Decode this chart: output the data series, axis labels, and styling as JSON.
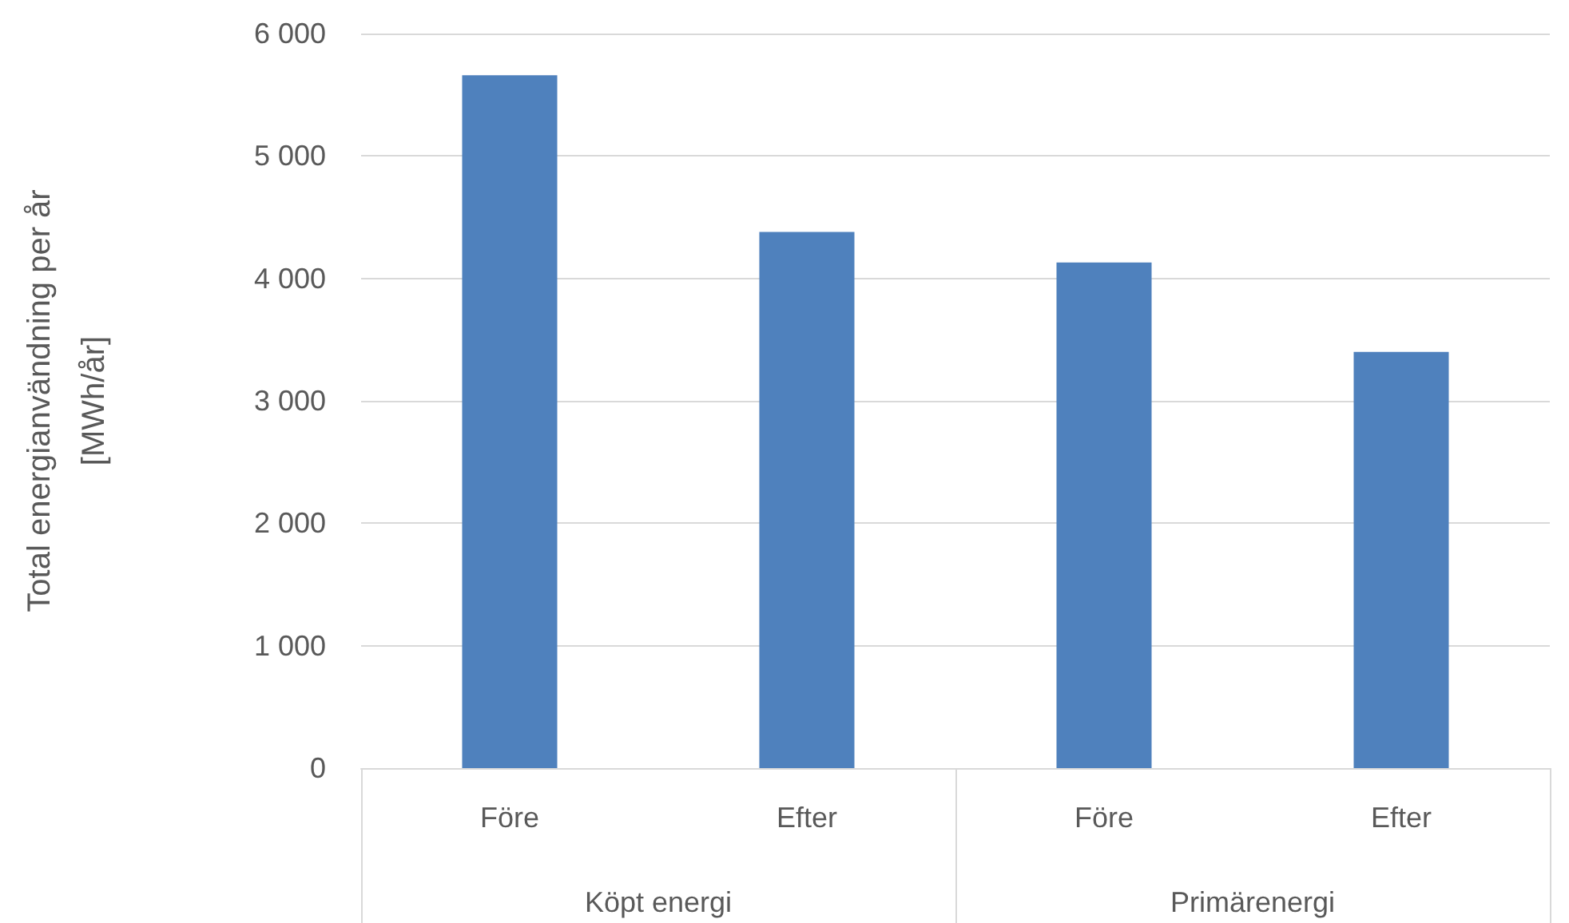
{
  "chart_data": {
    "type": "bar",
    "ylabel": "Total energianvändning per år\n[MWh/år]",
    "categories": [
      "Före",
      "Efter",
      "Före",
      "Efter"
    ],
    "values": [
      5660,
      4380,
      4130,
      3400
    ],
    "color": "#4f81bd",
    "ylim": [
      0,
      6000
    ],
    "yticks": [
      {
        "value": 0,
        "label": "0"
      },
      {
        "value": 1000,
        "label": "1 000"
      },
      {
        "value": 2000,
        "label": "2 000"
      },
      {
        "value": 3000,
        "label": "3 000"
      },
      {
        "value": 4000,
        "label": "4 000"
      },
      {
        "value": 5000,
        "label": "5 000"
      },
      {
        "value": 6000,
        "label": "6 000"
      }
    ],
    "annotations": [
      "Köpt energi",
      "Primärenergi"
    ],
    "grid": "y"
  }
}
